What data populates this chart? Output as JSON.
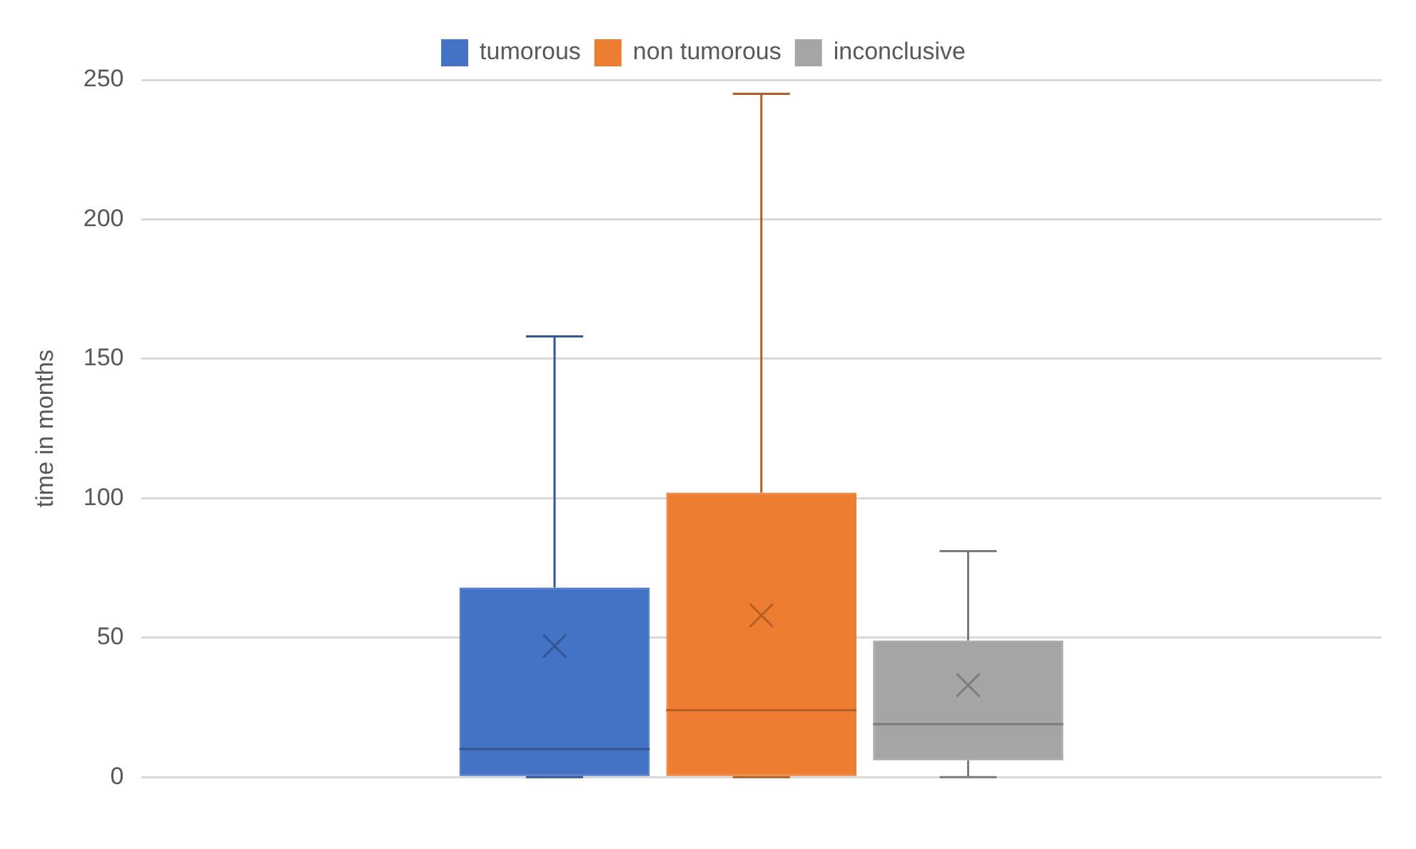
{
  "chart_data": {
    "type": "box",
    "ylabel": "time in months",
    "categories": [
      null
    ],
    "series": [
      {
        "name": "tumorous",
        "color": "#4472c4",
        "boxes": [
          {
            "low": 0,
            "q1": 0,
            "median": 10,
            "q3": 68,
            "high": 158,
            "mean": 47
          }
        ]
      },
      {
        "name": "non tumorous",
        "color": "#ed7d31",
        "boxes": [
          {
            "low": 0,
            "q1": 0,
            "median": 24,
            "q3": 102,
            "high": 245,
            "mean": 58
          }
        ]
      },
      {
        "name": "inconclusive",
        "color": "#a5a5a5",
        "boxes": [
          {
            "low": 0,
            "q1": 6,
            "median": 19,
            "q3": 49,
            "high": 81,
            "mean": 33
          }
        ]
      }
    ],
    "ylim": [
      0,
      250
    ],
    "yticks": [
      0,
      50,
      100,
      150,
      200,
      250
    ],
    "grid": "y",
    "legend": "top",
    "marker": "cross"
  }
}
